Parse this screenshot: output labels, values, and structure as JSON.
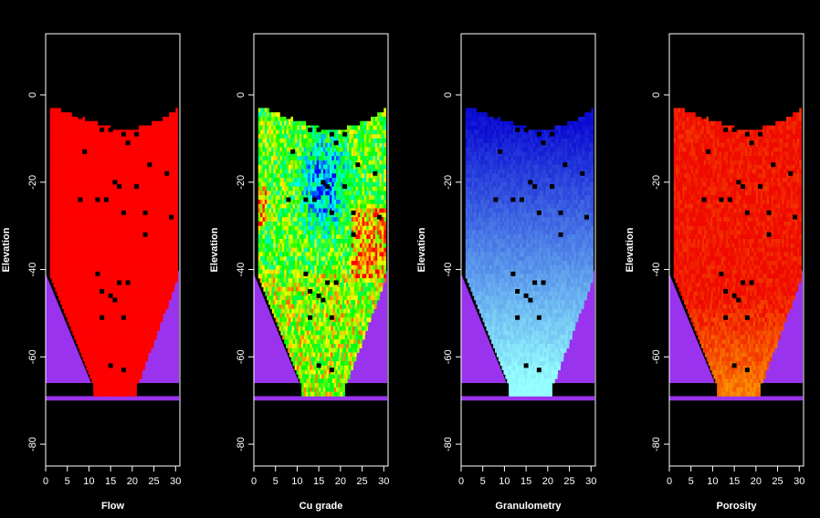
{
  "figure": {
    "background": "#000000",
    "axis_color": "#ffffff",
    "envelope_color": "#9933ee"
  },
  "chart_data": [
    {
      "type": "heatmap",
      "title": "",
      "xlabel": "Flow",
      "ylabel": "Elevation",
      "xlim": [
        0,
        31
      ],
      "ylim": [
        -85,
        14
      ],
      "xticks": [
        0,
        5,
        10,
        15,
        20,
        25,
        30
      ],
      "yticks": [
        0,
        -20,
        -40,
        -60,
        -80
      ],
      "palette": "flow",
      "grid": false,
      "legend": "none",
      "draw_points": [
        [
          8,
          -5
        ],
        [
          9,
          -13
        ],
        [
          13,
          -8
        ],
        [
          15,
          -8
        ],
        [
          17,
          -7
        ],
        [
          19,
          -11
        ],
        [
          21,
          -9
        ],
        [
          18,
          -9
        ],
        [
          16,
          -20
        ],
        [
          17,
          -21
        ],
        [
          12,
          -24
        ],
        [
          8,
          -24
        ],
        [
          14,
          -24
        ],
        [
          18,
          -27
        ],
        [
          21,
          -21
        ],
        [
          24,
          -16
        ],
        [
          28,
          -18
        ],
        [
          29,
          -28
        ],
        [
          23,
          -27
        ],
        [
          23,
          -32
        ],
        [
          12,
          -41
        ],
        [
          13,
          -45
        ],
        [
          15,
          -46
        ],
        [
          16,
          -47
        ],
        [
          17,
          -43
        ],
        [
          19,
          -43
        ],
        [
          13,
          -51
        ],
        [
          18,
          -51
        ],
        [
          15,
          -62
        ],
        [
          18,
          -63
        ]
      ]
    },
    {
      "type": "heatmap",
      "title": "",
      "xlabel": "Cu grade",
      "ylabel": "Elevation",
      "xlim": [
        0,
        31
      ],
      "ylim": [
        -85,
        14
      ],
      "xticks": [
        0,
        5,
        10,
        15,
        20,
        25,
        30
      ],
      "yticks": [
        0,
        -20,
        -40,
        -60,
        -80
      ],
      "palette": "grade",
      "grid": false,
      "legend": "none",
      "draw_points": [
        [
          8,
          -5
        ],
        [
          9,
          -13
        ],
        [
          13,
          -8
        ],
        [
          15,
          -8
        ],
        [
          17,
          -7
        ],
        [
          19,
          -11
        ],
        [
          21,
          -9
        ],
        [
          18,
          -9
        ],
        [
          16,
          -20
        ],
        [
          17,
          -21
        ],
        [
          12,
          -24
        ],
        [
          8,
          -24
        ],
        [
          14,
          -24
        ],
        [
          18,
          -27
        ],
        [
          21,
          -21
        ],
        [
          24,
          -16
        ],
        [
          28,
          -18
        ],
        [
          29,
          -28
        ],
        [
          23,
          -27
        ],
        [
          23,
          -32
        ],
        [
          12,
          -41
        ],
        [
          13,
          -45
        ],
        [
          15,
          -46
        ],
        [
          16,
          -47
        ],
        [
          17,
          -43
        ],
        [
          19,
          -43
        ],
        [
          13,
          -51
        ],
        [
          18,
          -51
        ],
        [
          15,
          -62
        ],
        [
          18,
          -63
        ]
      ]
    },
    {
      "type": "heatmap",
      "title": "",
      "xlabel": "Granulometry",
      "ylabel": "Elevation",
      "xlim": [
        0,
        31
      ],
      "ylim": [
        -85,
        14
      ],
      "xticks": [
        0,
        5,
        10,
        15,
        20,
        25,
        30
      ],
      "yticks": [
        0,
        -20,
        -40,
        -60,
        -80
      ],
      "palette": "granulometry",
      "grid": false,
      "legend": "none",
      "draw_points": [
        [
          8,
          -5
        ],
        [
          9,
          -13
        ],
        [
          13,
          -8
        ],
        [
          15,
          -8
        ],
        [
          17,
          -7
        ],
        [
          19,
          -11
        ],
        [
          21,
          -9
        ],
        [
          18,
          -9
        ],
        [
          16,
          -20
        ],
        [
          17,
          -21
        ],
        [
          12,
          -24
        ],
        [
          8,
          -24
        ],
        [
          14,
          -24
        ],
        [
          18,
          -27
        ],
        [
          21,
          -21
        ],
        [
          24,
          -16
        ],
        [
          28,
          -18
        ],
        [
          29,
          -28
        ],
        [
          23,
          -27
        ],
        [
          23,
          -32
        ],
        [
          12,
          -41
        ],
        [
          13,
          -45
        ],
        [
          15,
          -46
        ],
        [
          16,
          -47
        ],
        [
          17,
          -43
        ],
        [
          19,
          -43
        ],
        [
          13,
          -51
        ],
        [
          18,
          -51
        ],
        [
          15,
          -62
        ],
        [
          18,
          -63
        ]
      ]
    },
    {
      "type": "heatmap",
      "title": "",
      "xlabel": "Porosity",
      "ylabel": "Elevation",
      "xlim": [
        0,
        31
      ],
      "ylim": [
        -85,
        14
      ],
      "xticks": [
        0,
        5,
        10,
        15,
        20,
        25,
        30
      ],
      "yticks": [
        0,
        -20,
        -40,
        -60,
        -80
      ],
      "palette": "porosity",
      "grid": false,
      "legend": "none",
      "draw_points": [
        [
          8,
          -5
        ],
        [
          9,
          -13
        ],
        [
          13,
          -8
        ],
        [
          15,
          -8
        ],
        [
          17,
          -7
        ],
        [
          19,
          -11
        ],
        [
          21,
          -9
        ],
        [
          18,
          -9
        ],
        [
          16,
          -20
        ],
        [
          17,
          -21
        ],
        [
          12,
          -24
        ],
        [
          8,
          -24
        ],
        [
          14,
          -24
        ],
        [
          18,
          -27
        ],
        [
          21,
          -21
        ],
        [
          24,
          -16
        ],
        [
          28,
          -18
        ],
        [
          29,
          -28
        ],
        [
          23,
          -27
        ],
        [
          23,
          -32
        ],
        [
          12,
          -41
        ],
        [
          13,
          -45
        ],
        [
          15,
          -46
        ],
        [
          16,
          -47
        ],
        [
          17,
          -43
        ],
        [
          19,
          -43
        ],
        [
          13,
          -51
        ],
        [
          18,
          -51
        ],
        [
          15,
          -62
        ],
        [
          18,
          -63
        ]
      ]
    }
  ]
}
